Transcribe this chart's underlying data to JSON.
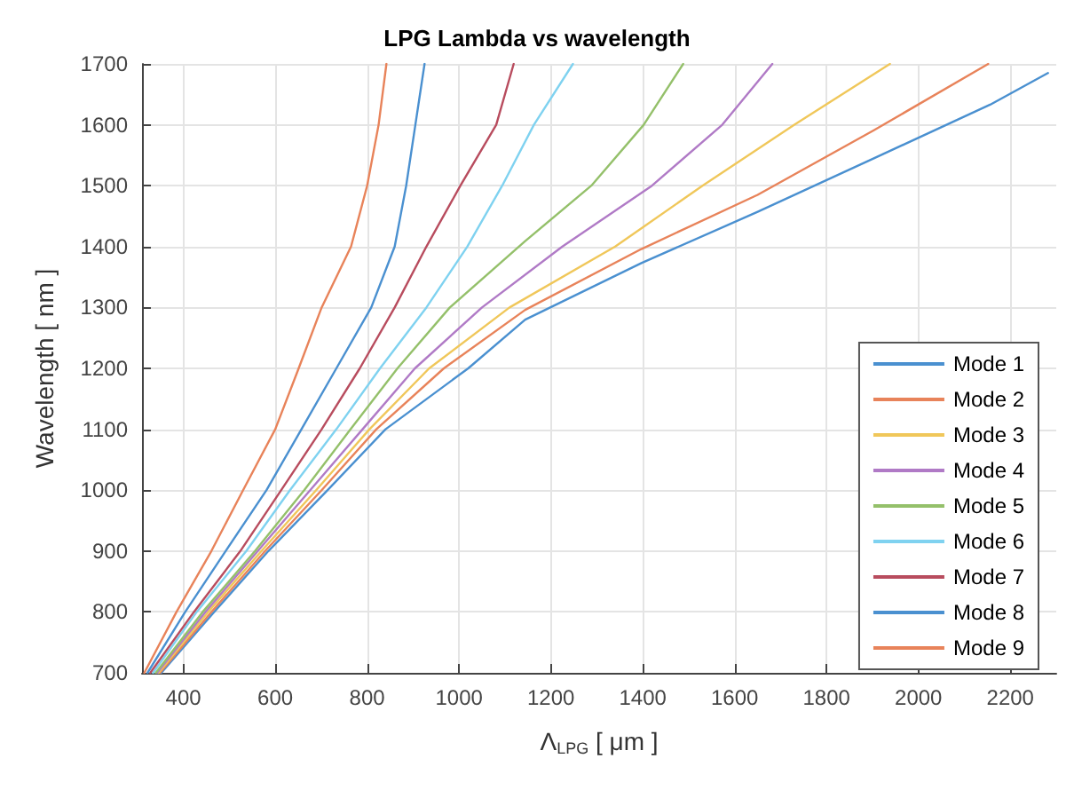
{
  "chart_data": {
    "type": "line",
    "title": "LPG Lambda vs wavelength",
    "xlabel": "Λ$_{LPG}$ [ μm ]",
    "ylabel": "Wavelength [ nm ]",
    "xlim": [
      310,
      2300
    ],
    "xticks": [
      400,
      600,
      800,
      1000,
      1200,
      1400,
      1600,
      1800,
      2000,
      2200
    ],
    "ylim": [
      700,
      1700
    ],
    "yticks": [
      700,
      800,
      900,
      1000,
      1100,
      1200,
      1300,
      1400,
      1500,
      1600,
      1700
    ],
    "grid": true,
    "legend": "bottom right",
    "marker": "none",
    "line_style": "solid",
    "series": [
      {
        "name": "Mode 1",
        "color": "#4a90d0",
        "x": [
          352,
          467,
          585,
          714,
          840,
          1020,
          1144,
          1397,
          1650,
          1903,
          2156,
          2282
        ],
        "values": [
          700,
          800,
          900,
          1000,
          1100,
          1200,
          1280,
          1373,
          1457,
          1545,
          1633,
          1685
        ]
      },
      {
        "name": "Mode 2",
        "color": "#e8835a",
        "x": [
          349,
          461,
          578,
          701,
          820,
          967,
          1144,
          1397,
          1650,
          1903,
          2152
        ],
        "values": [
          700,
          800,
          900,
          1000,
          1100,
          1200,
          1296,
          1396,
          1485,
          1591,
          1700
        ]
      },
      {
        "name": "Mode 3",
        "color": "#f0c75a",
        "x": [
          346,
          454,
          570,
          689,
          805,
          935,
          1110,
          1340,
          1530,
          1730,
          1938
        ],
        "values": [
          700,
          800,
          900,
          1000,
          1100,
          1200,
          1300,
          1400,
          1500,
          1600,
          1700
        ]
      },
      {
        "name": "Mode 4",
        "color": "#b07ac6",
        "x": [
          343,
          448,
          562,
          676,
          790,
          904,
          1050,
          1225,
          1420,
          1573,
          1682
        ],
        "values": [
          700,
          800,
          900,
          1000,
          1100,
          1200,
          1300,
          1400,
          1500,
          1600,
          1700
        ]
      },
      {
        "name": "Mode 5",
        "color": "#94c06a",
        "x": [
          340,
          442,
          556,
          663,
          764,
          866,
          980,
          1144,
          1288,
          1402,
          1488
        ],
        "values": [
          700,
          800,
          900,
          1000,
          1100,
          1200,
          1300,
          1409,
          1500,
          1600,
          1700
        ]
      },
      {
        "name": "Mode 6",
        "color": "#7fd2f0",
        "x": [
          334,
          429,
          537,
          632,
          733,
          828,
          929,
          1018,
          1094,
          1163,
          1248
        ],
        "values": [
          700,
          800,
          900,
          1000,
          1100,
          1200,
          1300,
          1400,
          1500,
          1600,
          1700
        ]
      },
      {
        "name": "Mode 7",
        "color": "#b84c5e",
        "x": [
          328,
          423,
          524,
          613,
          701,
          784,
          860,
          929,
          1003,
          1081,
          1119
        ],
        "values": [
          700,
          800,
          900,
          1000,
          1100,
          1200,
          1300,
          1400,
          1500,
          1600,
          1700
        ]
      },
      {
        "name": "Mode 8",
        "color": "#4a90d0",
        "x": [
          322,
          404,
          492,
          581,
          657,
          733,
          809,
          860,
          885,
          905,
          925
        ],
        "values": [
          700,
          800,
          900,
          1000,
          1100,
          1200,
          1300,
          1400,
          1500,
          1600,
          1700
        ]
      },
      {
        "name": "Mode 9",
        "color": "#e8835a",
        "x": [
          315,
          385,
          461,
          530,
          600,
          651,
          701,
          765,
          800,
          825,
          842
        ],
        "values": [
          700,
          800,
          900,
          1000,
          1100,
          1200,
          1300,
          1400,
          1500,
          1600,
          1700
        ]
      }
    ]
  }
}
